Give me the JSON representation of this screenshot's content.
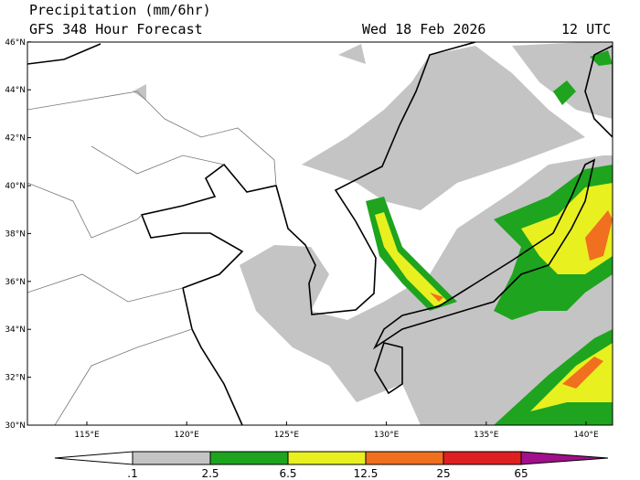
{
  "header": {
    "title": "Precipitation (mm/6hr)",
    "subtitle": "GFS 348 Hour Forecast",
    "date": "Wed 18 Feb 2026",
    "time": "12 UTC"
  },
  "map": {
    "lat_labels": [
      "30°N",
      "32°N",
      "34°N",
      "36°N",
      "38°N",
      "40°N",
      "42°N",
      "44°N",
      "46°N"
    ],
    "lon_labels": [
      "115°E",
      "120°E",
      "125°E",
      "130°E",
      "135°E",
      "140°E"
    ]
  },
  "colorbar": {
    "labels": [
      ".1",
      "2.5",
      "6.5",
      "12.5",
      "25",
      "65"
    ]
  }
}
